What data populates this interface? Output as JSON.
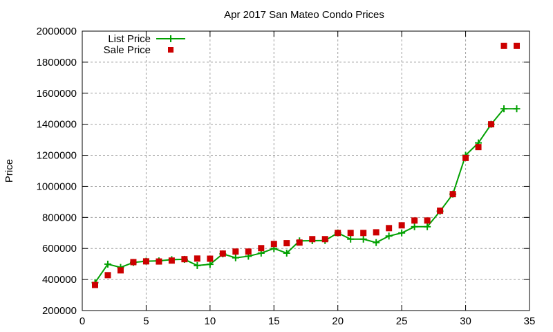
{
  "chart_data": {
    "type": "line",
    "title": "Apr 2017 San Mateo Condo Prices",
    "xlabel": "",
    "ylabel": "Price",
    "xlim": [
      0,
      35
    ],
    "ylim": [
      200000,
      2000000
    ],
    "xticks": [
      0,
      5,
      10,
      15,
      20,
      25,
      30,
      35
    ],
    "yticks": [
      200000,
      400000,
      600000,
      800000,
      1000000,
      1200000,
      1400000,
      1600000,
      1800000,
      2000000
    ],
    "grid": true,
    "legend_position": "top-left",
    "x": [
      1,
      2,
      3,
      4,
      5,
      6,
      7,
      8,
      9,
      10,
      11,
      12,
      13,
      14,
      15,
      16,
      17,
      18,
      19,
      20,
      21,
      22,
      23,
      24,
      25,
      26,
      27,
      28,
      29,
      30,
      31,
      32,
      33,
      34
    ],
    "series": [
      {
        "name": "List Price",
        "style": "line-points",
        "marker": "plus",
        "color": "#00a000",
        "values": [
          380000,
          499000,
          478000,
          510000,
          518000,
          520000,
          528000,
          530000,
          490000,
          498000,
          565000,
          540000,
          550000,
          570000,
          600000,
          570000,
          649000,
          650000,
          651000,
          700000,
          660000,
          660000,
          638000,
          680000,
          700000,
          740000,
          740000,
          840000,
          950000,
          1200000,
          1280000,
          1400000,
          1500000,
          1500000
        ]
      },
      {
        "name": "Sale Price",
        "style": "points",
        "marker": "square",
        "color": "#cc0000",
        "values": [
          365000,
          428000,
          459000,
          512000,
          517000,
          516000,
          522000,
          531000,
          535000,
          534000,
          567000,
          580000,
          580000,
          602000,
          629000,
          634000,
          638000,
          660000,
          660000,
          700000,
          700000,
          700000,
          704000,
          731000,
          749000,
          780000,
          780000,
          843000,
          950000,
          1183000,
          1253000,
          1400000,
          1905000,
          1905000
        ]
      }
    ]
  },
  "legend": {
    "items": [
      {
        "label": "List Price"
      },
      {
        "label": "Sale Price"
      }
    ]
  }
}
